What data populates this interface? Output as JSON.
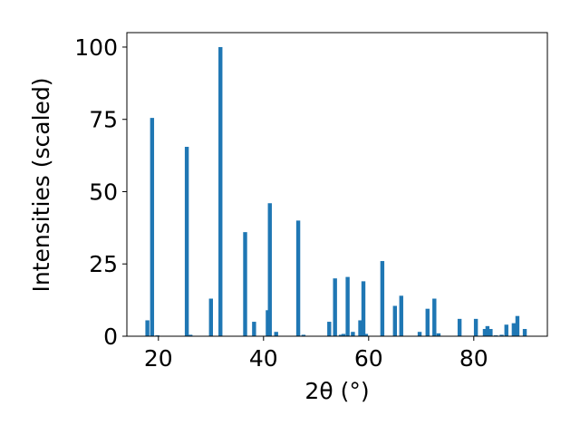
{
  "chart_data": {
    "type": "bar",
    "title": "",
    "xlabel": "2θ (°)",
    "ylabel": "Intensities (scaled)",
    "xlim": [
      14,
      94
    ],
    "ylim": [
      0,
      105
    ],
    "x_ticks": [
      20,
      40,
      60,
      80
    ],
    "y_ticks": [
      0,
      25,
      50,
      75,
      100
    ],
    "bar_color": "#1f77b4",
    "grid": false,
    "x": [
      17.9,
      18.8,
      19.8,
      25.4,
      26.1,
      30.0,
      31.8,
      36.5,
      38.2,
      40.8,
      41.2,
      42.4,
      46.6,
      47.6,
      52.5,
      53.6,
      54.7,
      55.2,
      56.0,
      57.0,
      58.4,
      59.0,
      59.5,
      62.6,
      65.0,
      66.2,
      69.7,
      71.2,
      72.5,
      73.3,
      77.3,
      80.4,
      82.1,
      82.6,
      83.2,
      84.2,
      85.3,
      86.2,
      87.6,
      88.3,
      89.7
    ],
    "values": [
      5.5,
      75.5,
      0.3,
      65.5,
      0.5,
      13,
      100,
      36,
      5,
      9,
      46,
      1.5,
      40,
      0.5,
      5,
      20,
      0.5,
      0.8,
      20.5,
      1.5,
      5.5,
      19,
      0.8,
      26,
      10.5,
      14,
      1.5,
      9.5,
      13,
      1,
      6,
      6,
      2.5,
      3.5,
      2.5,
      0.3,
      0.5,
      4,
      4.5,
      7,
      2.5
    ]
  }
}
